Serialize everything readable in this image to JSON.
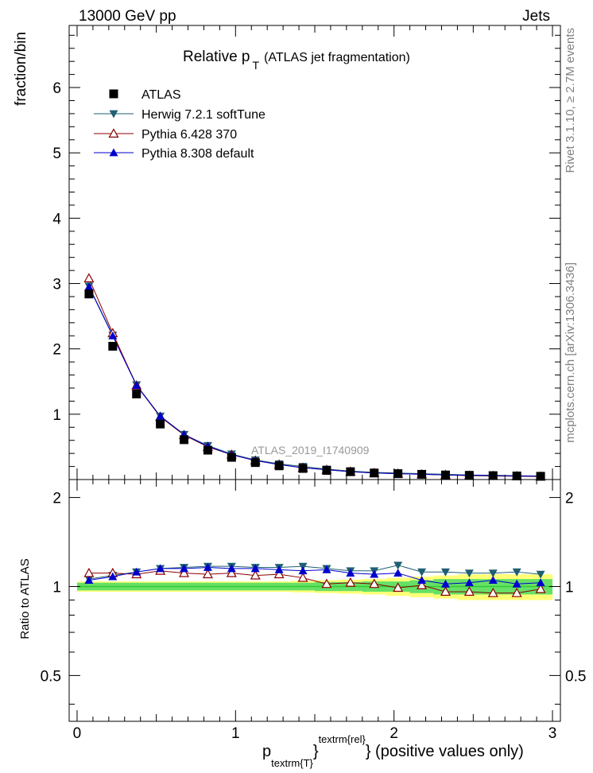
{
  "header": {
    "left": "13000 GeV pp",
    "right": "Jets"
  },
  "side_labels": {
    "top": "Rivet 3.1.10, ≥ 2.7M events",
    "bottom": "mcplots.cern.ch [arXiv:1306.3436]"
  },
  "watermark": "ATLAS_2019_I1740909",
  "chart_data": {
    "type": "scatter",
    "title": {
      "main": "Relative p",
      "sub": "T",
      "rest": "(ATLAS jet fragmentation)"
    },
    "ylabel": "fraction/bin",
    "ratio_ylabel": "Ratio to ATLAS",
    "xlabel": {
      "p": "p",
      "sub": "textrm{T}",
      "sup": "textrm{rel}",
      "rest": "} (positive values only)",
      "brace": "}"
    },
    "xlim": [
      -0.05,
      3.05
    ],
    "ylim": [
      0,
      6.95
    ],
    "ratio_ylim": [
      0.35,
      2.3
    ],
    "x_ticks": [
      "0",
      "1",
      "2",
      "3"
    ],
    "y_ticks": [
      "0",
      "1",
      "2",
      "3",
      "4",
      "5",
      "6"
    ],
    "ratio_ticks": [
      "0.5",
      "1",
      "2"
    ],
    "x": [
      0.075,
      0.225,
      0.375,
      0.525,
      0.675,
      0.825,
      0.975,
      1.125,
      1.275,
      1.425,
      1.575,
      1.725,
      1.875,
      2.025,
      2.175,
      2.325,
      2.475,
      2.625,
      2.775,
      2.925
    ],
    "series": [
      {
        "name": "ATLAS",
        "marker": "square",
        "color": "#000000",
        "values": [
          2.84,
          2.04,
          1.31,
          0.85,
          0.61,
          0.45,
          0.34,
          0.26,
          0.21,
          0.17,
          0.14,
          0.12,
          0.1,
          0.09,
          0.08,
          0.07,
          0.065,
          0.06,
          0.055,
          0.05
        ]
      },
      {
        "name": "Herwig 7.2.1 softTune",
        "marker": "triangle-down",
        "color": "#1f5f73",
        "values": [
          2.96,
          2.21,
          1.45,
          0.97,
          0.69,
          0.52,
          0.39,
          0.3,
          0.24,
          0.2,
          0.16,
          0.13,
          0.11,
          0.1,
          0.09,
          0.08,
          0.07,
          0.065,
          0.06,
          0.055
        ]
      },
      {
        "name": "Pythia 6.428 370",
        "marker": "triangle-open",
        "color": "#8b0000",
        "values": [
          3.08,
          2.24,
          1.44,
          0.96,
          0.68,
          0.5,
          0.38,
          0.29,
          0.23,
          0.18,
          0.15,
          0.12,
          0.1,
          0.09,
          0.08,
          0.07,
          0.06,
          0.055,
          0.05,
          0.045
        ]
      },
      {
        "name": "Pythia 8.308 default",
        "marker": "triangle-up",
        "color": "#0000cc",
        "values": [
          2.95,
          2.2,
          1.44,
          0.97,
          0.69,
          0.51,
          0.38,
          0.29,
          0.23,
          0.18,
          0.15,
          0.12,
          0.1,
          0.09,
          0.08,
          0.07,
          0.065,
          0.06,
          0.055,
          0.05
        ]
      }
    ],
    "ratio": {
      "Herwig 7.2.1 softTune": [
        1.06,
        1.09,
        1.12,
        1.15,
        1.16,
        1.17,
        1.17,
        1.16,
        1.16,
        1.17,
        1.15,
        1.13,
        1.13,
        1.18,
        1.12,
        1.12,
        1.11,
        1.11,
        1.12,
        1.1
      ],
      "Pythia 6.428 370": [
        1.11,
        1.11,
        1.1,
        1.13,
        1.11,
        1.1,
        1.11,
        1.09,
        1.1,
        1.07,
        1.02,
        1.03,
        1.02,
        0.99,
        1.01,
        0.96,
        0.96,
        0.95,
        0.95,
        0.98
      ],
      "Pythia 8.308 default": [
        1.05,
        1.08,
        1.12,
        1.15,
        1.15,
        1.16,
        1.15,
        1.15,
        1.14,
        1.13,
        1.14,
        1.11,
        1.1,
        1.11,
        1.05,
        1.02,
        1.03,
        1.05,
        1.02,
        1.03
      ]
    },
    "bands": {
      "stat_half": [
        0.03,
        0.03,
        0.03,
        0.03,
        0.03,
        0.03,
        0.03,
        0.03,
        0.03,
        0.03,
        0.035,
        0.035,
        0.04,
        0.04,
        0.05,
        0.06,
        0.06,
        0.06,
        0.06,
        0.06
      ],
      "total_half": [
        0.04,
        0.04,
        0.04,
        0.04,
        0.04,
        0.04,
        0.04,
        0.04,
        0.04,
        0.045,
        0.05,
        0.055,
        0.06,
        0.07,
        0.08,
        0.09,
        0.1,
        0.1,
        0.1,
        0.1
      ],
      "green": "#66e066",
      "yellow": "#ffff77"
    },
    "reference_line_color": "#33cc33",
    "grid": false,
    "legend": "top-left"
  }
}
